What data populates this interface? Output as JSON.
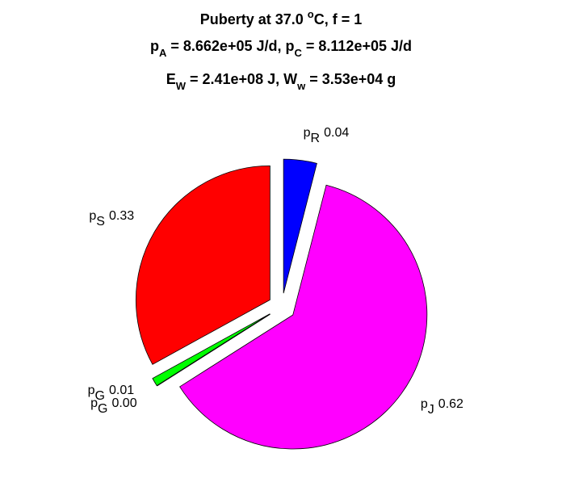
{
  "chart_data": {
    "type": "pie",
    "title_lines": [
      [
        {
          "text": "Puberty at 37.0 "
        },
        {
          "text": "o",
          "sup": true
        },
        {
          "text": "C, f = 1"
        }
      ],
      [
        {
          "text": "p"
        },
        {
          "text": "A",
          "sub": true
        },
        {
          "text": " = 8.662e+05 J/d,  p"
        },
        {
          "text": "C",
          "sub": true
        },
        {
          "text": " = 8.112e+05 J/d"
        }
      ],
      [
        {
          "text": "E"
        },
        {
          "text": "W",
          "sub": true
        },
        {
          "text": " = 2.41e+08 J, W"
        },
        {
          "text": "w",
          "sub": true
        },
        {
          "text": " = 3.53e+04 g"
        }
      ]
    ],
    "labels": [
      {
        "text": "p",
        "sub": "S"
      },
      {
        "text": "p",
        "sub": "G"
      },
      {
        "text": "p",
        "sub": "G"
      },
      {
        "text": "p",
        "sub": "J"
      },
      {
        "text": "p",
        "sub": "R"
      }
    ],
    "values": [
      0.33,
      0.01,
      0,
      0.62,
      0.04
    ],
    "value_labels": [
      "0.33",
      "0.01",
      "0.00",
      "0.62",
      "0.04"
    ],
    "colors": [
      "#ff0000",
      "#00ff00",
      "#00ffff",
      "#ff00ff",
      "#0000ff"
    ],
    "explode": true
  }
}
